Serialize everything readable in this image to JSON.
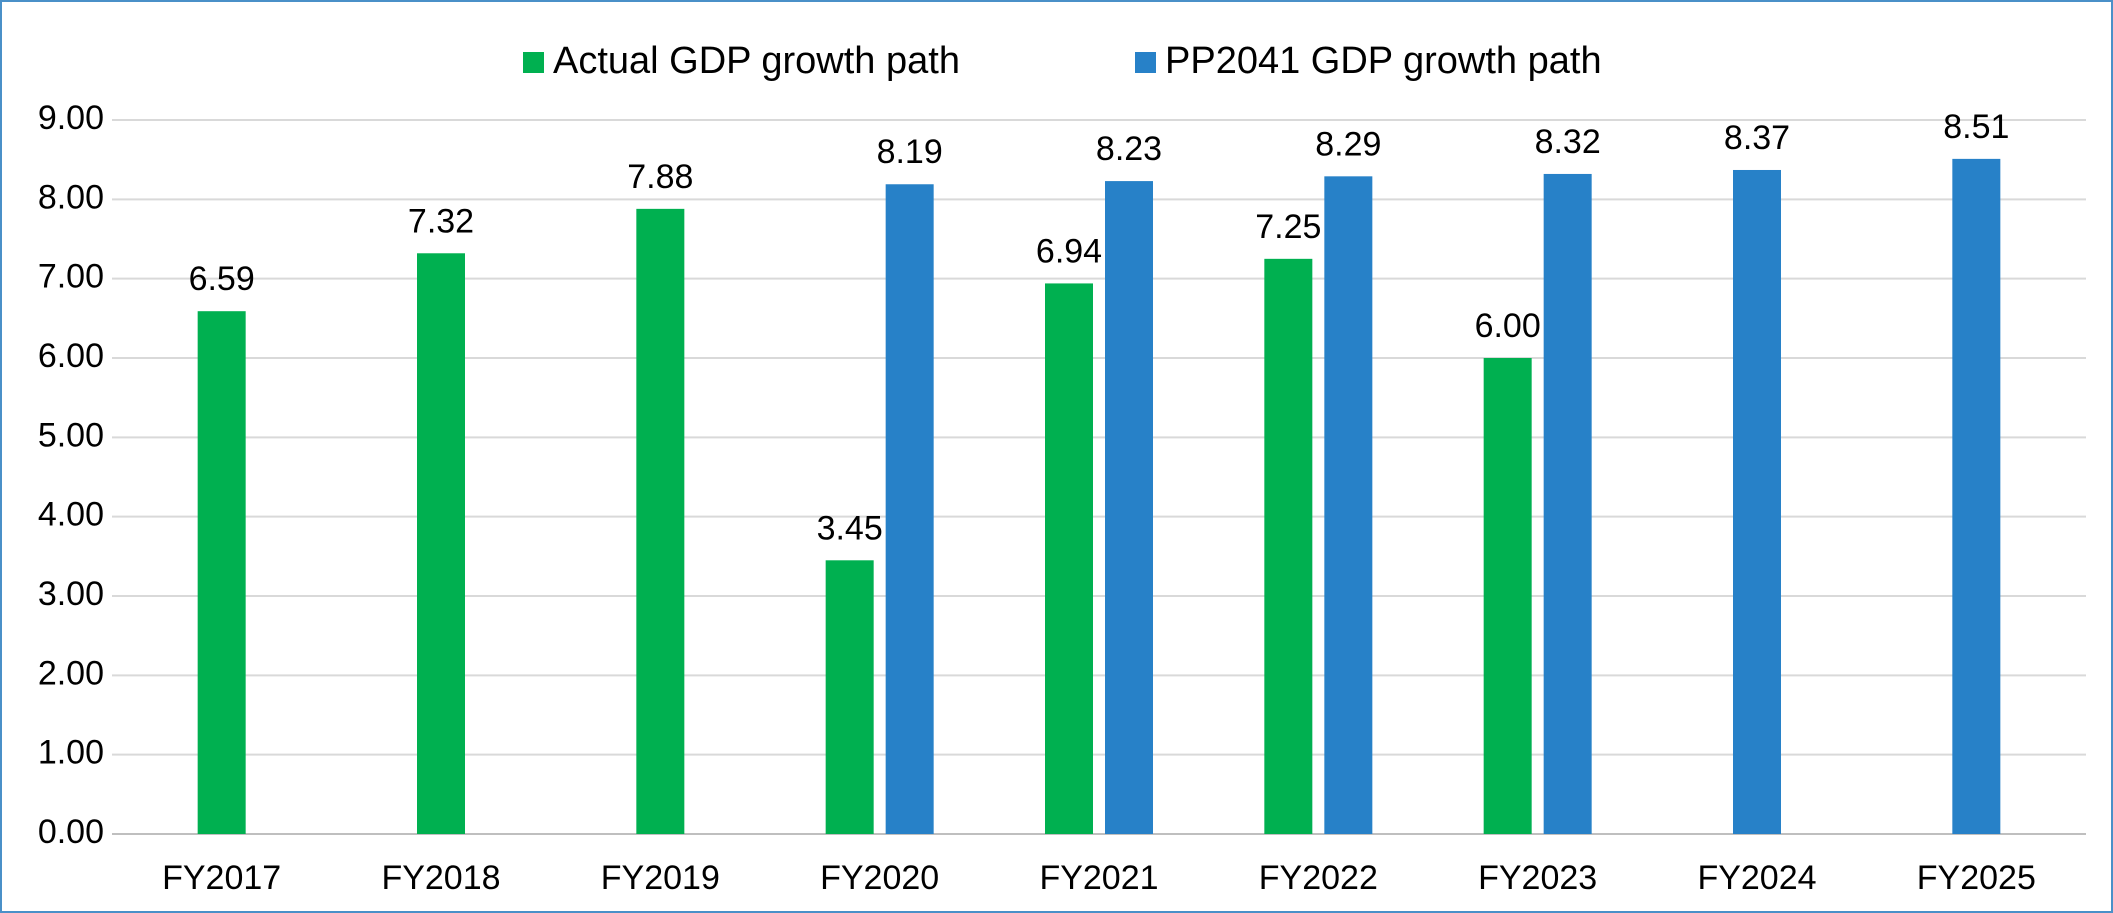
{
  "chart_data": {
    "type": "bar",
    "categories": [
      "FY2017",
      "FY2018",
      "FY2019",
      "FY2020",
      "FY2021",
      "FY2022",
      "FY2023",
      "FY2024",
      "FY2025"
    ],
    "series": [
      {
        "name": "Actual GDP growth path",
        "color": "#00b050",
        "values": [
          6.59,
          7.32,
          7.88,
          3.45,
          6.94,
          7.25,
          6.0,
          null,
          null
        ],
        "value_labels": [
          "6.59",
          "7.32",
          "7.88",
          "3.45",
          "6.94",
          "7.25",
          "6.00",
          null,
          null
        ]
      },
      {
        "name": "PP2041 GDP growth path",
        "color": "#2781c8",
        "values": [
          null,
          null,
          null,
          8.19,
          8.23,
          8.29,
          8.32,
          8.37,
          8.51
        ],
        "value_labels": [
          null,
          null,
          null,
          "8.19",
          "8.23",
          "8.29",
          "8.32",
          "8.37",
          "8.51"
        ]
      }
    ],
    "ylim": [
      0,
      9
    ],
    "yticks": [
      {
        "value": 0,
        "label": "0.00"
      },
      {
        "value": 1,
        "label": "1.00"
      },
      {
        "value": 2,
        "label": "2.00"
      },
      {
        "value": 3,
        "label": "3.00"
      },
      {
        "value": 4,
        "label": "4.00"
      },
      {
        "value": 5,
        "label": "5.00"
      },
      {
        "value": 6,
        "label": "6.00"
      },
      {
        "value": 7,
        "label": "7.00"
      },
      {
        "value": 8,
        "label": "8.00"
      },
      {
        "value": 9,
        "label": "9.00"
      }
    ],
    "grid": true,
    "legend": "top"
  }
}
